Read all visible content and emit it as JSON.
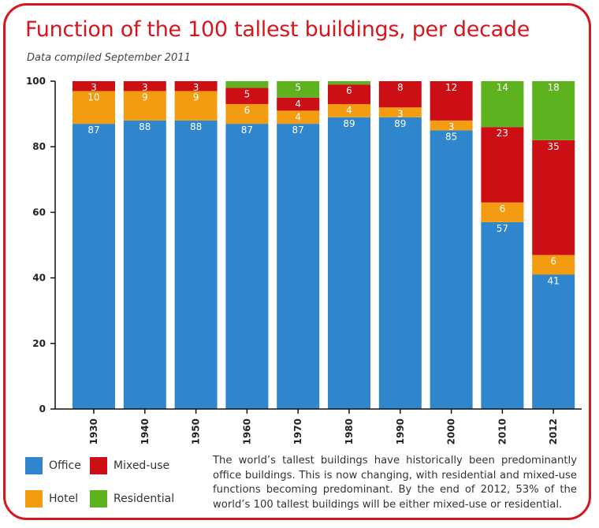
{
  "header": {
    "title": "Function of the 100 tallest buildings, per decade",
    "subtitle": "Data compiled September 2011"
  },
  "chart_data": {
    "type": "bar",
    "stacked": true,
    "categories": [
      "1930",
      "1940",
      "1950",
      "1960",
      "1970",
      "1980",
      "1990",
      "2000",
      "2010",
      "2012"
    ],
    "series": [
      {
        "name": "Office",
        "color": "#2f86cc",
        "values": [
          87,
          88,
          88,
          87,
          87,
          89,
          89,
          85,
          57,
          41
        ]
      },
      {
        "name": "Hotel",
        "color": "#f39c12",
        "values": [
          10,
          9,
          9,
          6,
          4,
          4,
          3,
          3,
          6,
          6
        ]
      },
      {
        "name": "Mixed-use",
        "color": "#cc0e15",
        "values": [
          3,
          3,
          3,
          5,
          4,
          6,
          8,
          12,
          23,
          35
        ]
      },
      {
        "name": "Residential",
        "color": "#5db31e",
        "values": [
          0,
          0,
          0,
          2,
          5,
          1,
          0,
          0,
          14,
          18
        ]
      }
    ],
    "data_labels": [
      [
        "87",
        "88",
        "88",
        "87",
        "87",
        "89",
        "89",
        "85",
        "57",
        "41"
      ],
      [
        "10",
        "9",
        "9",
        "6",
        "4",
        "4",
        "3",
        "3",
        "6",
        "6"
      ],
      [
        "3",
        "3",
        "3",
        "5",
        "4",
        "6",
        "8",
        "12",
        "23",
        "35"
      ],
      [
        "",
        "",
        "",
        "",
        "5",
        "",
        "",
        "",
        "14",
        "18"
      ]
    ],
    "ylim": [
      0,
      100
    ],
    "yticks": [
      "0",
      "20",
      "40",
      "60",
      "80",
      "100"
    ],
    "grid": false,
    "legend": "bottom-left",
    "bar_label_color": "#ffffff"
  },
  "legend": {
    "items": [
      {
        "label": "Office",
        "color": "#2f86cc"
      },
      {
        "label": "Mixed-use",
        "color": "#cc0e15"
      },
      {
        "label": "Hotel",
        "color": "#f39c12"
      },
      {
        "label": "Residential",
        "color": "#5db31e"
      }
    ]
  },
  "note": {
    "text": "The world’s tallest buildings have historically been predominantly office buildings. This is now changing, with residential and mixed-use functions becoming predominant. By the end of 2012, 53% of the world’s 100 tallest buildings will be either mixed-use or residential."
  },
  "colors": {
    "frame": "#d7151c",
    "title": "#d7151c",
    "axis": "#111111"
  }
}
